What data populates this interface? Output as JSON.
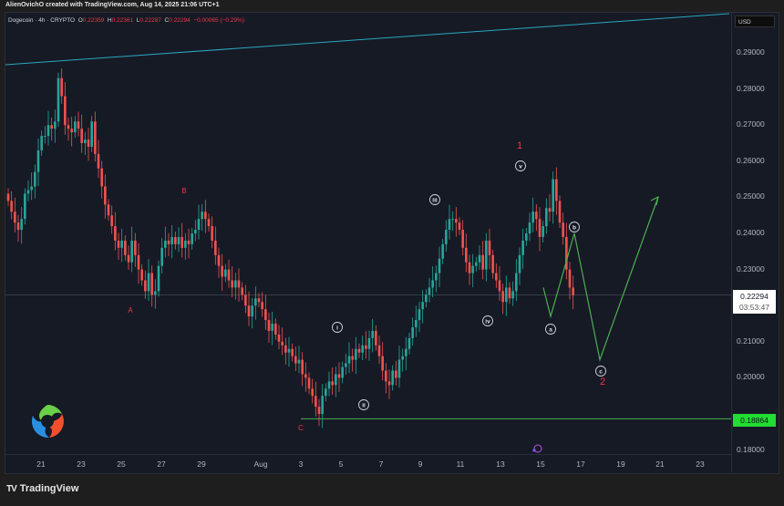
{
  "header": {
    "credit": "AlienOvichO created with TradingView.com, Aug 14, 2025 21:06 UTC+1"
  },
  "legend": {
    "symbol": "Dogecoin · 4h · CRYPTO",
    "open_label": "O",
    "open": "0.22359",
    "high_label": "H",
    "high": "0.22361",
    "low_label": "L",
    "low": "0.22287",
    "close_label": "C",
    "close": "0.22294",
    "change": "−0.00065 (−0.29%)"
  },
  "price_axis": {
    "currency": "USD",
    "ticks": [
      "0.29000",
      "0.28000",
      "0.27000",
      "0.26000",
      "0.25000",
      "0.24000",
      "0.23000",
      "0.21000",
      "0.20000",
      "0.18000"
    ],
    "last_price": "0.22294",
    "countdown": "03:53:47",
    "support_price": "0.18864"
  },
  "time_axis": {
    "ticks": [
      "21",
      "23",
      "25",
      "27",
      "29",
      "Aug",
      "3",
      "5",
      "7",
      "9",
      "11",
      "13",
      "15",
      "17",
      "19",
      "21",
      "23"
    ]
  },
  "footer": {
    "brand": "TradingView",
    "brand_mark": "TV"
  },
  "colors": {
    "up": "#26a69a",
    "down": "#ef5350",
    "background": "#161a25",
    "trendline": "#2aa7c0",
    "projection": "#4caf50",
    "wave_label": "#f23645",
    "support_line": "#4caf50",
    "last_price_line": "#3a3f4b"
  },
  "annotations": {
    "wave_labels_red": [
      {
        "text": "B",
        "price": 0.2505,
        "date": "Jul 28"
      },
      {
        "text": "A",
        "price": 0.2115,
        "date": "Jul 25"
      },
      {
        "text": "C",
        "price": 0.1835,
        "date": "Aug 3"
      },
      {
        "text": "1",
        "price": 0.2625,
        "date": "Aug 14"
      },
      {
        "text": "2",
        "price": 0.1975,
        "date": "Aug 18"
      }
    ],
    "wave_labels_circled": [
      {
        "text": "i",
        "price": 0.2145,
        "date": "Aug 5"
      },
      {
        "text": "ii",
        "price": 0.1925,
        "date": "Aug 6"
      },
      {
        "text": "iii",
        "price": 0.249,
        "date": "Aug 10"
      },
      {
        "text": "iv",
        "price": 0.2155,
        "date": "Aug 12"
      },
      {
        "text": "v",
        "price": 0.258,
        "date": "Aug 14"
      },
      {
        "text": "a",
        "price": 0.2105,
        "date": "Aug 15"
      },
      {
        "text": "b",
        "price": 0.242,
        "date": "Aug 16"
      },
      {
        "text": "c",
        "price": 0.202,
        "date": "Aug 18"
      }
    ],
    "projection_path": [
      0.225,
      0.217,
      0.24,
      0.205,
      0.2505
    ],
    "support_level": 0.18864,
    "trendline": {
      "from_price": 0.288,
      "to_price": 0.313
    }
  },
  "chart_data": {
    "type": "candlestick",
    "title": "Dogecoin · 4h · CRYPTO",
    "xlabel": "",
    "ylabel": "USD",
    "ylim": [
      0.175,
      0.3
    ],
    "x_ticks": [
      "21",
      "23",
      "25",
      "27",
      "29",
      "Aug",
      "3",
      "5",
      "7",
      "9",
      "11",
      "13",
      "15",
      "17",
      "19",
      "21",
      "23"
    ],
    "y_ticks": [
      0.18,
      0.2,
      0.21,
      0.23,
      0.24,
      0.25,
      0.26,
      0.27,
      0.28,
      0.29
    ],
    "interval": "4h",
    "start_date": "Jul 19",
    "closes": [
      0.249,
      0.246,
      0.243,
      0.241,
      0.244,
      0.251,
      0.252,
      0.253,
      0.257,
      0.263,
      0.267,
      0.267,
      0.27,
      0.269,
      0.271,
      0.283,
      0.278,
      0.27,
      0.269,
      0.268,
      0.271,
      0.269,
      0.265,
      0.266,
      0.264,
      0.271,
      0.262,
      0.258,
      0.253,
      0.248,
      0.245,
      0.242,
      0.238,
      0.236,
      0.238,
      0.234,
      0.232,
      0.238,
      0.234,
      0.23,
      0.227,
      0.224,
      0.229,
      0.223,
      0.224,
      0.231,
      0.236,
      0.238,
      0.237,
      0.239,
      0.237,
      0.239,
      0.236,
      0.238,
      0.237,
      0.24,
      0.241,
      0.244,
      0.246,
      0.244,
      0.242,
      0.238,
      0.234,
      0.231,
      0.228,
      0.23,
      0.227,
      0.225,
      0.227,
      0.225,
      0.223,
      0.22,
      0.217,
      0.22,
      0.222,
      0.221,
      0.219,
      0.216,
      0.213,
      0.215,
      0.212,
      0.21,
      0.209,
      0.207,
      0.208,
      0.206,
      0.204,
      0.205,
      0.201,
      0.2,
      0.197,
      0.195,
      0.192,
      0.19,
      0.195,
      0.197,
      0.199,
      0.198,
      0.201,
      0.2,
      0.203,
      0.204,
      0.206,
      0.205,
      0.208,
      0.207,
      0.209,
      0.208,
      0.211,
      0.213,
      0.209,
      0.206,
      0.202,
      0.199,
      0.198,
      0.202,
      0.2,
      0.205,
      0.206,
      0.208,
      0.211,
      0.214,
      0.216,
      0.219,
      0.221,
      0.223,
      0.225,
      0.227,
      0.229,
      0.233,
      0.237,
      0.241,
      0.244,
      0.244,
      0.243,
      0.241,
      0.236,
      0.232,
      0.229,
      0.231,
      0.232,
      0.234,
      0.23,
      0.238,
      0.234,
      0.229,
      0.227,
      0.224,
      0.221,
      0.225,
      0.222,
      0.224,
      0.229,
      0.234,
      0.238,
      0.24,
      0.243,
      0.246,
      0.244,
      0.239,
      0.242,
      0.247,
      0.246,
      0.255,
      0.249,
      0.243,
      0.239,
      0.23,
      0.225,
      0.2229
    ]
  }
}
